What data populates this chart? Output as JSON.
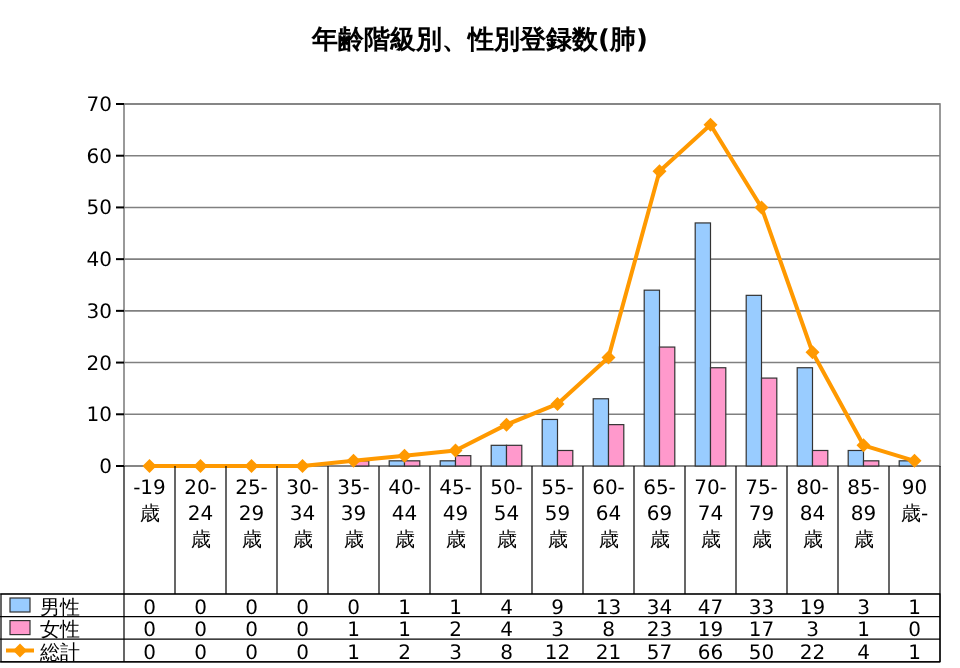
{
  "chart_data": {
    "type": "bar",
    "title": "年齢階級別、性別登録数(肺)",
    "categories": [
      "-19歳",
      "20-24歳",
      "25-29歳",
      "30-34歳",
      "35-39歳",
      "40-44歳",
      "45-49歳",
      "50-54歳",
      "55-59歳",
      "60-64歳",
      "65-69歳",
      "70-74歳",
      "75-79歳",
      "80-84歳",
      "85-89歳",
      "90歳-"
    ],
    "series": [
      {
        "name": "男性",
        "color": "#99ccff",
        "values": [
          0,
          0,
          0,
          0,
          0,
          1,
          1,
          4,
          9,
          13,
          34,
          47,
          33,
          19,
          3,
          1
        ]
      },
      {
        "name": "女性",
        "color": "#ff99cc",
        "values": [
          0,
          0,
          0,
          0,
          1,
          1,
          2,
          4,
          3,
          8,
          23,
          19,
          17,
          3,
          1,
          0
        ]
      },
      {
        "name": "総計",
        "type": "line",
        "color": "#ff9900",
        "marker": "diamond",
        "values": [
          0,
          0,
          0,
          0,
          1,
          2,
          3,
          8,
          12,
          21,
          57,
          66,
          50,
          22,
          4,
          1
        ]
      }
    ],
    "ylim": [
      0,
      70
    ],
    "yticks": [
      0,
      10,
      20,
      30,
      40,
      50,
      60,
      70
    ],
    "grid": "y",
    "data_labels": true,
    "legend": "bottom"
  }
}
